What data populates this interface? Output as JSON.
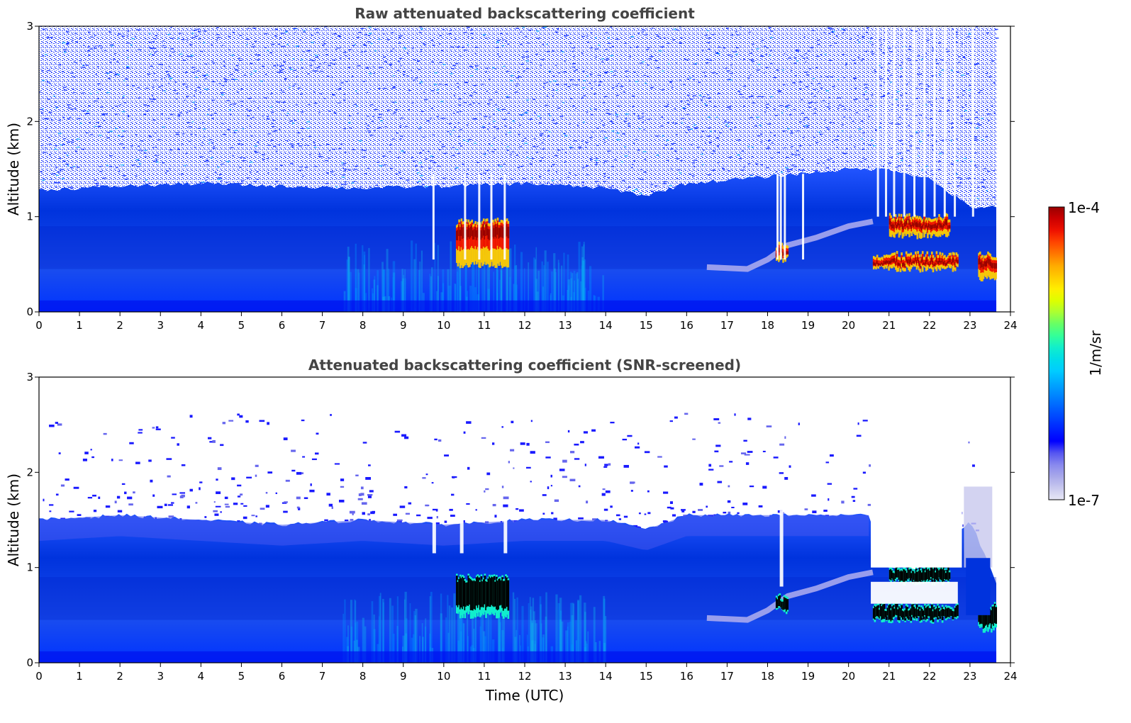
{
  "colors": {
    "scale": [
      "#e8e8f6",
      "#c8c8ee",
      "#a8a8ea",
      "#8888ee",
      "#5555f0",
      "#0000ff",
      "#0022ff",
      "#0044ff",
      "#0066ff",
      "#0088ff",
      "#00aaff",
      "#00ccff",
      "#00dde8",
      "#11eecc",
      "#33ff99",
      "#66ff66",
      "#aaff33",
      "#ddff00",
      "#ffee00",
      "#ffcc00",
      "#ffaa00",
      "#ff7700",
      "#ff4400",
      "#ee1100",
      "#cc0000",
      "#990000"
    ]
  },
  "chart_data": [
    {
      "type": "heatmap",
      "title": "Raw attenuated backscattering coefficient",
      "xlabel": "",
      "ylabel": "Altitude (km)",
      "xlim": [
        0,
        24
      ],
      "ylim": [
        0,
        3
      ],
      "xticks": [
        "0",
        "1",
        "2",
        "3",
        "4",
        "5",
        "6",
        "7",
        "8",
        "9",
        "10",
        "11",
        "12",
        "13",
        "14",
        "15",
        "16",
        "17",
        "18",
        "19",
        "20",
        "21",
        "22",
        "23",
        "24"
      ],
      "yticks": [
        "0",
        "1",
        "2",
        "3"
      ],
      "data_end_hour": 23.65,
      "boundary_layer_top_km": [
        [
          0,
          1.28
        ],
        [
          2,
          1.32
        ],
        [
          4,
          1.35
        ],
        [
          6,
          1.32
        ],
        [
          8,
          1.3
        ],
        [
          10,
          1.32
        ],
        [
          12,
          1.35
        ],
        [
          14,
          1.3
        ],
        [
          15,
          1.22
        ],
        [
          16,
          1.35
        ],
        [
          18,
          1.42
        ],
        [
          20,
          1.5
        ],
        [
          21,
          1.5
        ],
        [
          22,
          1.4
        ],
        [
          23,
          1.1
        ],
        [
          23.65,
          1.1
        ]
      ],
      "features": [
        {
          "label": "cloud",
          "start": 20.6,
          "end": 22.7,
          "alt_km": [
            0.45,
            0.6
          ]
        },
        {
          "label": "cloud",
          "start": 21.0,
          "end": 22.5,
          "alt_km": [
            0.8,
            1.0
          ]
        },
        {
          "label": "cloud",
          "start": 23.2,
          "end": 23.65,
          "alt_km": [
            0.35,
            0.6
          ]
        },
        {
          "label": "cloud",
          "start": 18.2,
          "end": 18.5,
          "alt_km": [
            0.55,
            0.7
          ]
        },
        {
          "label": "cloud",
          "start": 10.3,
          "end": 11.6,
          "alt_km": [
            0.5,
            0.95
          ]
        }
      ]
    },
    {
      "type": "heatmap",
      "title": "Attenuated backscattering coefficient (SNR-screened)",
      "xlabel": "Time (UTC)",
      "ylabel": "Altitude (km)",
      "xlim": [
        0,
        24
      ],
      "ylim": [
        0,
        3
      ],
      "xticks": [
        "0",
        "1",
        "2",
        "3",
        "4",
        "5",
        "6",
        "7",
        "8",
        "9",
        "10",
        "11",
        "12",
        "13",
        "14",
        "15",
        "16",
        "17",
        "18",
        "19",
        "20",
        "21",
        "22",
        "23",
        "24"
      ],
      "yticks": [
        "0",
        "1",
        "2",
        "3"
      ],
      "data_end_hour": 23.65,
      "boundary_layer_top_km": [
        [
          0,
          1.5
        ],
        [
          2,
          1.55
        ],
        [
          4,
          1.5
        ],
        [
          6,
          1.45
        ],
        [
          8,
          1.5
        ],
        [
          10,
          1.45
        ],
        [
          12,
          1.5
        ],
        [
          14,
          1.5
        ],
        [
          15,
          1.4
        ],
        [
          16,
          1.55
        ],
        [
          18,
          1.55
        ],
        [
          20,
          1.55
        ],
        [
          20.5,
          1.55
        ],
        [
          21,
          1.0
        ],
        [
          22,
          1.0
        ],
        [
          23,
          1.5
        ],
        [
          23.65,
          0.85
        ]
      ],
      "features": [
        {
          "label": "cloud",
          "start": 20.6,
          "end": 22.7,
          "alt_km": [
            0.45,
            0.6
          ]
        },
        {
          "label": "cloud",
          "start": 21.0,
          "end": 22.5,
          "alt_km": [
            0.85,
            1.0
          ]
        },
        {
          "label": "cloud",
          "start": 23.2,
          "end": 23.65,
          "alt_km": [
            0.35,
            0.6
          ]
        },
        {
          "label": "cloud",
          "start": 18.2,
          "end": 18.5,
          "alt_km": [
            0.55,
            0.7
          ]
        },
        {
          "label": "cloud",
          "start": 10.3,
          "end": 11.6,
          "alt_km": [
            0.5,
            0.9
          ]
        }
      ]
    }
  ],
  "colorbar": {
    "label": "1/m/sr",
    "max_label": "1e-4",
    "min_label": "1e-7",
    "scale": "log",
    "range": [
      1e-07,
      0.0001
    ]
  }
}
